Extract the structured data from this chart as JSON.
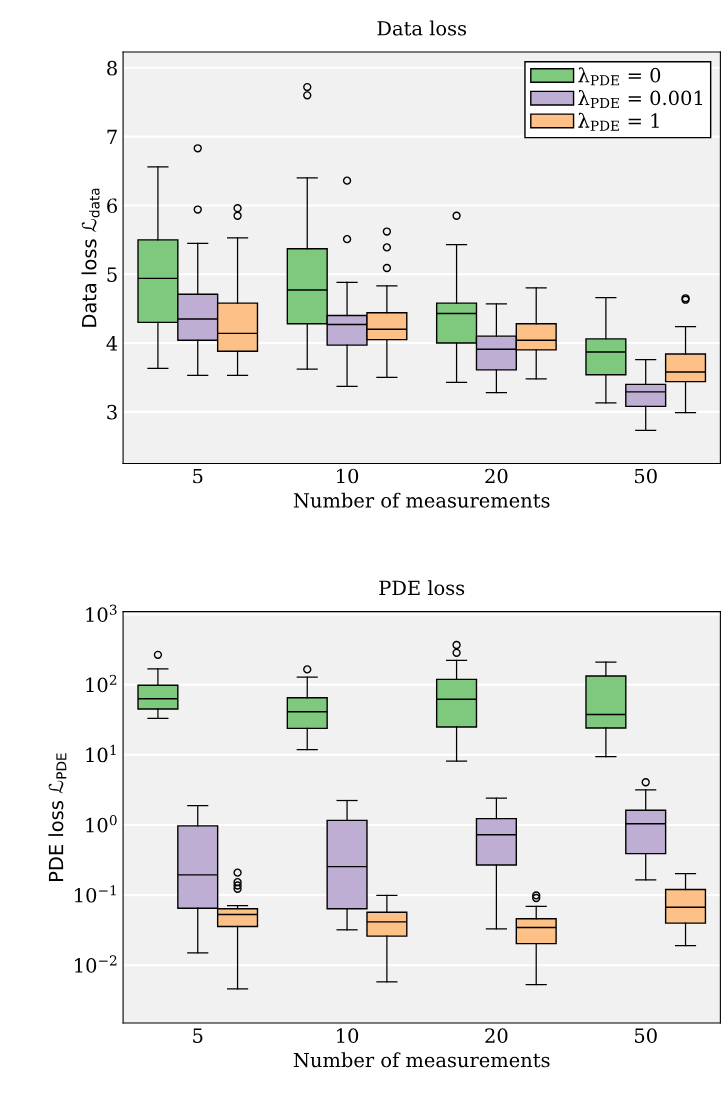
{
  "chart_data": [
    {
      "type": "box",
      "title": "Data loss",
      "xlabel": "Number of measurements",
      "ylabel": "Data loss ℒ$_{data}$",
      "categories": [
        "5",
        "10",
        "20",
        "50"
      ],
      "ylim": [
        2.25,
        8.23
      ],
      "yticks": [
        3,
        4,
        5,
        6,
        7,
        8
      ],
      "grid": "y",
      "legend": "top right",
      "log": false,
      "series": [
        {
          "name": "λ$_{PDE}$ = 0",
          "color": "#7fc97f",
          "boxes": [
            {
              "low": 3.63,
              "q1": 4.3,
              "median": 4.94,
              "q3": 5.5,
              "high": 6.56
            },
            {
              "low": 3.62,
              "q1": 4.28,
              "median": 4.77,
              "q3": 5.37,
              "high": 6.4,
              "outliers": [
                7.72,
                7.6
              ]
            },
            {
              "low": 3.43,
              "q1": 4.0,
              "median": 4.43,
              "q3": 4.58,
              "high": 5.43,
              "outliers": [
                5.85
              ]
            },
            {
              "low": 3.13,
              "q1": 3.54,
              "median": 3.87,
              "q3": 4.06,
              "high": 4.66
            }
          ]
        },
        {
          "name": "λ$_{PDE}$ = 0.001",
          "color": "#beaed4",
          "boxes": [
            {
              "low": 3.53,
              "q1": 4.04,
              "median": 4.35,
              "q3": 4.71,
              "high": 5.45,
              "outliers": [
                6.83,
                5.94
              ]
            },
            {
              "low": 3.37,
              "q1": 3.97,
              "median": 4.27,
              "q3": 4.4,
              "high": 4.88,
              "outliers": [
                6.36,
                5.51
              ]
            },
            {
              "low": 3.28,
              "q1": 3.61,
              "median": 3.91,
              "q3": 4.1,
              "high": 4.57
            },
            {
              "low": 2.73,
              "q1": 3.08,
              "median": 3.29,
              "q3": 3.4,
              "high": 3.76
            }
          ]
        },
        {
          "name": "λ$_{PDE}$ = 1",
          "color": "#fdc086",
          "boxes": [
            {
              "low": 3.53,
              "q1": 3.88,
              "median": 4.14,
              "q3": 4.58,
              "high": 5.53,
              "outliers": [
                5.96,
                5.85
              ]
            },
            {
              "low": 3.5,
              "q1": 4.05,
              "median": 4.2,
              "q3": 4.44,
              "high": 4.83,
              "outliers": [
                5.62,
                5.39,
                5.09
              ]
            },
            {
              "low": 3.48,
              "q1": 3.9,
              "median": 4.04,
              "q3": 4.28,
              "high": 4.8
            },
            {
              "low": 2.99,
              "q1": 3.44,
              "median": 3.58,
              "q3": 3.84,
              "high": 4.24,
              "outliers": [
                4.63,
                4.65
              ]
            }
          ]
        }
      ]
    },
    {
      "type": "box",
      "title": "PDE loss",
      "xlabel": "Number of measurements",
      "ylabel": "PDE loss ℒ$_{PDE}$",
      "categories": [
        "5",
        "10",
        "20",
        "50"
      ],
      "ylim": [
        0.0015,
        1100
      ],
      "yticks": [
        {
          "value": 0.01,
          "label": "10$^{−2}$"
        },
        {
          "value": 0.1,
          "label": "10$^{−1}$"
        },
        {
          "value": 1,
          "label": "10$^{0}$"
        },
        {
          "value": 10,
          "label": "10$^{1}$"
        },
        {
          "value": 100,
          "label": "10$^{2}$"
        },
        {
          "value": 1000,
          "label": "10$^{3}$"
        }
      ],
      "grid": "y",
      "legend": false,
      "log": true,
      "series": [
        {
          "color": "#7fc97f",
          "boxes": [
            {
              "low": 33,
              "q1": 45,
              "median": 63,
              "q3": 98,
              "high": 168,
              "outliers": [
                266
              ]
            },
            {
              "low": 11.8,
              "q1": 23.8,
              "median": 41,
              "q3": 65,
              "high": 128,
              "outliers": [
                165
              ]
            },
            {
              "low": 8.1,
              "q1": 24.9,
              "median": 62,
              "q3": 119,
              "high": 221,
              "outliers": [
                368,
                284
              ]
            },
            {
              "low": 9.4,
              "q1": 24.1,
              "median": 37.6,
              "q3": 133,
              "high": 210
            }
          ]
        },
        {
          "color": "#beaed4",
          "boxes": [
            {
              "low": 0.015,
              "q1": 0.065,
              "median": 0.194,
              "q3": 0.97,
              "high": 1.88
            },
            {
              "low": 0.032,
              "q1": 0.064,
              "median": 0.255,
              "q3": 1.16,
              "high": 2.23
            },
            {
              "low": 0.033,
              "q1": 0.268,
              "median": 0.724,
              "q3": 1.23,
              "high": 2.41
            },
            {
              "low": 0.165,
              "q1": 0.39,
              "median": 1.04,
              "q3": 1.62,
              "high": 3.16,
              "outliers": [
                4.06
              ]
            }
          ]
        },
        {
          "color": "#fdc086",
          "boxes": [
            {
              "low": 0.0046,
              "q1": 0.0357,
              "median": 0.053,
              "q3": 0.064,
              "high": 0.071,
              "outliers": [
                0.209,
                0.153,
                0.137,
                0.123
              ]
            },
            {
              "low": 0.0058,
              "q1": 0.026,
              "median": 0.0415,
              "q3": 0.057,
              "high": 0.099
            },
            {
              "low": 0.0053,
              "q1": 0.0203,
              "median": 0.0345,
              "q3": 0.046,
              "high": 0.069,
              "outliers": [
                0.099,
                0.091
              ]
            },
            {
              "low": 0.019,
              "q1": 0.0398,
              "median": 0.067,
              "q3": 0.12,
              "high": 0.203
            }
          ]
        }
      ]
    }
  ]
}
